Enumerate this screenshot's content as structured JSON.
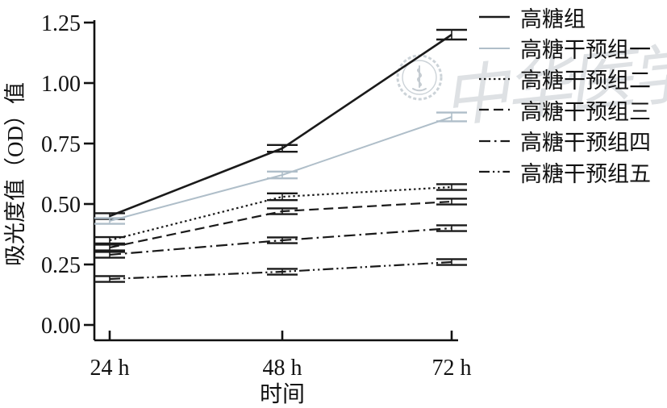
{
  "figure": {
    "background": "#ffffff",
    "watermark_text": "中华医学会"
  },
  "chart_data": {
    "type": "line",
    "title": "",
    "xlabel": "时间",
    "ylabel": "吸光度值（OD）值",
    "x_categories": [
      "24 h",
      "48 h",
      "72 h"
    ],
    "y_ticks": [
      "0.00",
      "0.25",
      "0.50",
      "0.75",
      "1.00",
      "1.25"
    ],
    "ylim": [
      0,
      1.25
    ],
    "grid": false,
    "legend_position": "top-right",
    "error_bars": true,
    "axis_color": "#111111",
    "series": [
      {
        "name": "高糖组",
        "style": "solid",
        "color": "#1a1a1a",
        "width": 2.6,
        "values": [
          0.45,
          0.73,
          1.2
        ],
        "errors": [
          0.012,
          0.014,
          0.02
        ]
      },
      {
        "name": "高糖干预组一",
        "style": "solid",
        "color": "#afbec9",
        "width": 2.0,
        "values": [
          0.43,
          0.62,
          0.86
        ],
        "errors": [
          0.012,
          0.014,
          0.018
        ]
      },
      {
        "name": "高糖干预组二",
        "style": "dotted",
        "color": "#1a1a1a",
        "width": 2.2,
        "values": [
          0.35,
          0.53,
          0.57
        ],
        "errors": [
          0.013,
          0.014,
          0.012
        ]
      },
      {
        "name": "高糖干预组三",
        "style": "dashed",
        "color": "#1a1a1a",
        "width": 2.2,
        "values": [
          0.32,
          0.47,
          0.51
        ],
        "errors": [
          0.012,
          0.012,
          0.012
        ]
      },
      {
        "name": "高糖干预组四",
        "style": "dashdot",
        "color": "#1a1a1a",
        "width": 2.2,
        "values": [
          0.29,
          0.35,
          0.4
        ],
        "errors": [
          0.012,
          0.012,
          0.012
        ]
      },
      {
        "name": "高糖干预组五",
        "style": "dashdotdot",
        "color": "#1a1a1a",
        "width": 2.2,
        "values": [
          0.19,
          0.22,
          0.26
        ],
        "errors": [
          0.012,
          0.012,
          0.012
        ]
      }
    ]
  }
}
